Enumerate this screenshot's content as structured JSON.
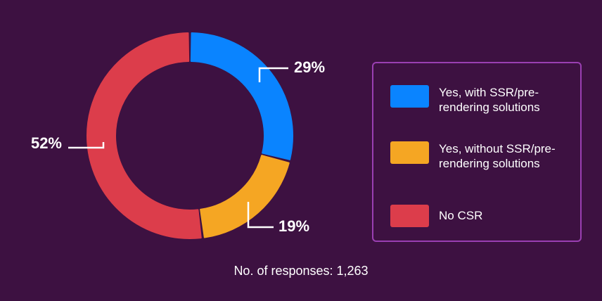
{
  "chart_data": {
    "type": "pie",
    "donut": true,
    "categories": [
      "Yes, with SSR/pre-rendering solutions",
      "Yes, without SSR/pre-rendering solutions",
      "No CSR"
    ],
    "values": [
      29,
      19,
      52
    ],
    "value_labels": [
      "29%",
      "19%",
      "52%"
    ],
    "colors": [
      "#0a84ff",
      "#f5a623",
      "#dc3d4b"
    ],
    "legend_placement": "right",
    "footnote": "No. of responses: 1,263"
  }
}
